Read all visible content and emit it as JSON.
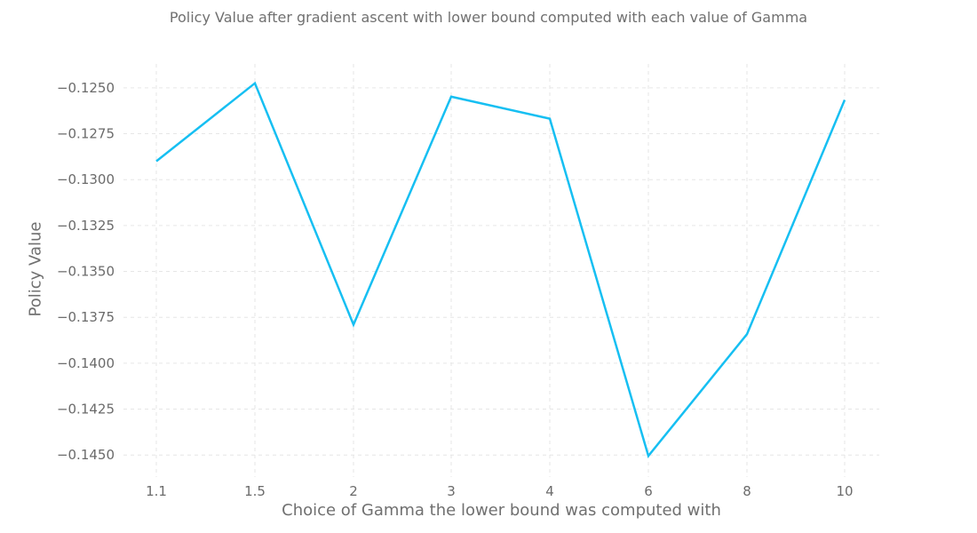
{
  "chart_data": {
    "type": "line",
    "title": "Policy Value after gradient ascent with lower bound computed with each value of Gamma",
    "xlabel": "Choice of Gamma the lower bound was computed with",
    "ylabel": "Policy Value",
    "categories": [
      "1.1",
      "1.5",
      "2",
      "3",
      "4",
      "6",
      "8",
      "10"
    ],
    "series": [
      {
        "color": "#16bff2",
        "values": [
          -0.129,
          -0.12475,
          -0.1379,
          -0.12548,
          -0.12668,
          -0.14505,
          -0.13842,
          -0.12566
        ]
      }
    ],
    "y_ticks": [
      -0.125,
      -0.1275,
      -0.13,
      -0.1325,
      -0.135,
      -0.1375,
      -0.14,
      -0.1425,
      -0.145
    ],
    "y_tick_labels": [
      "−0.1250",
      "−0.1275",
      "−0.1300",
      "−0.1325",
      "−0.1350",
      "−0.1375",
      "−0.1400",
      "−0.1425",
      "−0.1450"
    ],
    "ylim": [
      -0.1462,
      -0.1237
    ],
    "grid": true,
    "grid_color": "#e6e6e6"
  }
}
